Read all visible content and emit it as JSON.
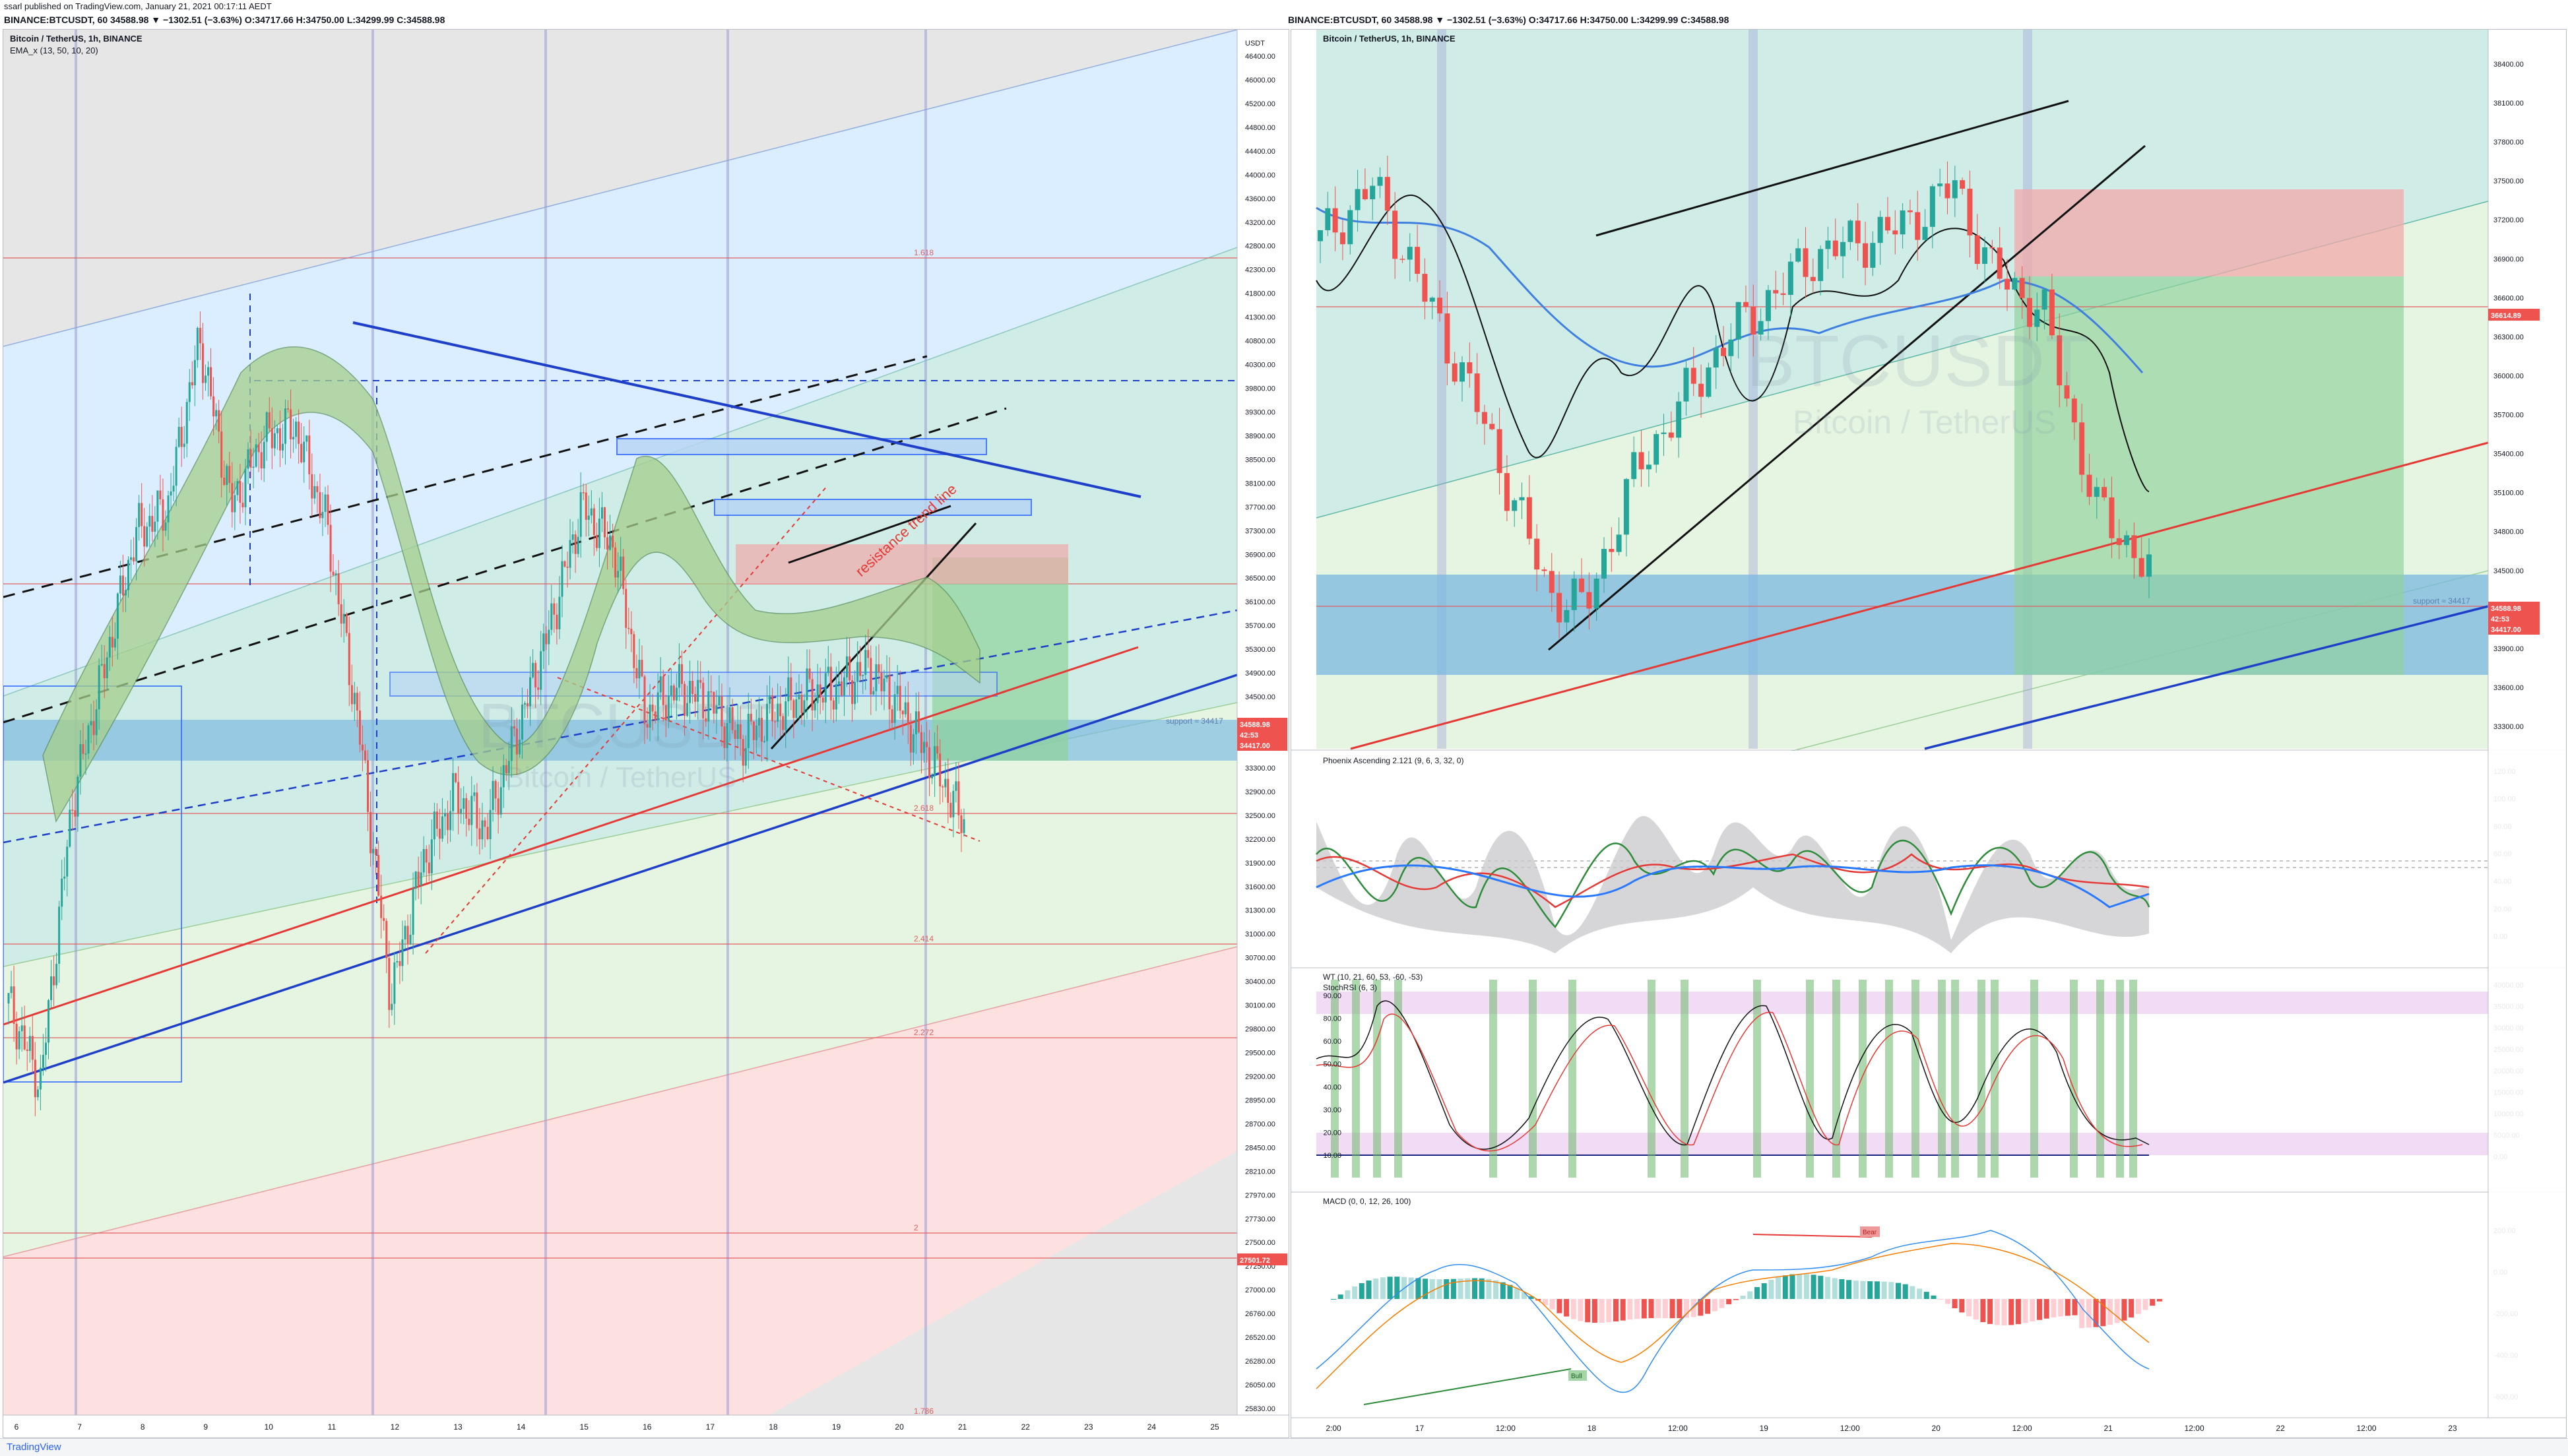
{
  "header": {
    "published": "ssarl published on TradingView.com, January 21, 2021 00:17:11 AEDT",
    "left_symbol_line": "BINANCE:BTCUSDT, 60 34588.98 ▼ −1302.51 (−3.63%) O:34717.66 H:34750.00 L:34299.99 C:34588.98",
    "right_symbol_line": "BINANCE:BTCUSDT, 60 34588.98 ▼ −1302.51 (−3.63%) O:34717.66 H:34750.00 L:34299.99 C:34588.98"
  },
  "footer": {
    "logo": "TradingView"
  },
  "colors": {
    "up": "#26a69a",
    "down": "#ef5350",
    "blue": "#1e3fc8",
    "red_line": "#e53935"
  },
  "left_chart": {
    "legend_title": "Bitcoin / TetherUS, 1h, BINANCE",
    "legend_indicator": "EMA_x (13, 50, 10, 20)",
    "watermark_symbol": "BTCUSDT",
    "watermark_name": "Bitcoin / TetherUS",
    "fib_labels": [
      "1.618",
      "2.618",
      "2.414",
      "2.272",
      "2",
      "1.786"
    ],
    "trend_label": "resistance trend line",
    "support_label": "support ≈ 34417",
    "price_tags": [
      {
        "label": "34588.98",
        "color": "#ef5350"
      },
      {
        "label": "42:53",
        "color": "#ef5350"
      },
      {
        "label": "34417.00",
        "color": "#ef5350"
      },
      {
        "label": "27501.72",
        "color": "#ef5350"
      }
    ],
    "y_axis_header": "USDT",
    "y_ticks": [
      "46400.00",
      "46000.00",
      "45200.00",
      "44800.00",
      "44400.00",
      "44000.00",
      "43600.00",
      "43200.00",
      "42800.00",
      "42300.00",
      "41800.00",
      "41300.00",
      "40800.00",
      "40300.00",
      "39800.00",
      "39300.00",
      "38900.00",
      "38500.00",
      "38100.00",
      "37700.00",
      "37300.00",
      "36900.00",
      "36500.00",
      "36100.00",
      "35700.00",
      "35300.00",
      "34900.00",
      "34500.00",
      "34100.00",
      "33700.00",
      "33300.00",
      "32900.00",
      "32500.00",
      "32200.00",
      "31900.00",
      "31600.00",
      "31300.00",
      "31000.00",
      "30700.00",
      "30400.00",
      "30100.00",
      "29800.00",
      "29500.00",
      "29200.00",
      "28950.00",
      "28700.00",
      "28450.00",
      "28210.00",
      "27970.00",
      "27730.00",
      "27500.00",
      "27250.00",
      "27000.00",
      "26760.00",
      "26520.00",
      "26280.00",
      "26050.00",
      "25830.00"
    ],
    "x_ticks": [
      "6",
      "7",
      "8",
      "9",
      "10",
      "11",
      "12",
      "13",
      "14",
      "15",
      "16",
      "17",
      "18",
      "19",
      "20",
      "21",
      "22",
      "23",
      "24",
      "25"
    ]
  },
  "right_chart": {
    "legend_title": "Bitcoin / TetherUS, 1h, BINANCE",
    "watermark_symbol": "BTCUSDT",
    "watermark_name": "Bitcoin / TetherUS",
    "support_label": "support ≈ 34417",
    "price_tags": [
      {
        "label": "36614.89",
        "color": "#ef5350"
      },
      {
        "label": "34588.98",
        "color": "#ef5350"
      },
      {
        "label": "42:53",
        "color": "#ef5350"
      },
      {
        "label": "34417.00",
        "color": "#ef5350"
      }
    ],
    "y_ticks": [
      "38400.00",
      "38100.00",
      "37800.00",
      "37500.00",
      "37200.00",
      "36900.00",
      "36600.00",
      "36300.00",
      "36000.00",
      "35700.00",
      "35400.00",
      "35100.00",
      "34800.00",
      "34500.00",
      "34200.00",
      "33900.00",
      "33600.00",
      "33300.00"
    ],
    "x_ticks": [
      "2:00",
      "17",
      "12:00",
      "18",
      "12:00",
      "19",
      "12:00",
      "20",
      "12:00",
      "21",
      "12:00",
      "22",
      "12:00",
      "23"
    ]
  },
  "phoenix": {
    "title": "Phoenix Ascending 2.121 (9, 6, 3, 32, 0)",
    "y_ticks": [
      "120.00",
      "100.00",
      "80.00",
      "60.00",
      "40.00",
      "20.00",
      "0.00"
    ]
  },
  "wt": {
    "title": "WT (10, 21, 60, 53, -60, -53)",
    "title2": "StochRSI (6, 3)",
    "left_ticks": [
      "90.00",
      "80.00",
      "60.00",
      "50.00",
      "40.00",
      "30.00",
      "20.00",
      "10.00"
    ],
    "right_ticks": [
      "40000.00",
      "35000.00",
      "30000.00",
      "25000.00",
      "20000.00",
      "15000.00",
      "10000.00",
      "5000.00",
      "0.00"
    ]
  },
  "macd": {
    "title": "MACD (0, 0, 12, 26, 100)",
    "bear_label": "Bear",
    "bull_label": "Bull",
    "y_ticks": [
      "200.00",
      "0.00",
      "-200.00",
      "-400.00",
      "-600.00"
    ]
  },
  "chart_data": [
    {
      "type": "candlestick",
      "title": "Bitcoin / TetherUS, 1h, BINANCE",
      "ylim": [
        25830,
        46400
      ],
      "x_range_days": [
        "6",
        "25"
      ],
      "close_path": [
        [
          6,
          31900
        ],
        [
          6.5,
          30700
        ],
        [
          7,
          34900
        ],
        [
          7.5,
          36900
        ],
        [
          8,
          38900
        ],
        [
          8.5,
          39300
        ],
        [
          9,
          41800
        ],
        [
          9.5,
          39300
        ],
        [
          10,
          40300
        ],
        [
          10.5,
          40500
        ],
        [
          11,
          39000
        ],
        [
          11.5,
          36000
        ],
        [
          12,
          32000
        ],
        [
          12.5,
          34000
        ],
        [
          13,
          35000
        ],
        [
          13.5,
          34500
        ],
        [
          14,
          36000
        ],
        [
          14.5,
          37500
        ],
        [
          15,
          39300
        ],
        [
          15.5,
          38700
        ],
        [
          16,
          36200
        ],
        [
          16.5,
          36600
        ],
        [
          17,
          36400
        ],
        [
          17.5,
          35800
        ],
        [
          18,
          36200
        ],
        [
          18.5,
          36500
        ],
        [
          19,
          36600
        ],
        [
          19.5,
          36900
        ],
        [
          20,
          36300
        ],
        [
          20.5,
          35500
        ],
        [
          21,
          34589
        ]
      ]
    },
    {
      "type": "candlestick",
      "title": "Bitcoin / TetherUS, 1h, BINANCE (zoom)",
      "ylim": [
        33300,
        38400
      ],
      "close_path": [
        [
          16.2,
          36900
        ],
        [
          16.5,
          37300
        ],
        [
          16.8,
          36500
        ],
        [
          17.1,
          35700
        ],
        [
          17.5,
          34400
        ],
        [
          17.7,
          34300
        ],
        [
          18,
          35300
        ],
        [
          18.5,
          36200
        ],
        [
          19,
          36800
        ],
        [
          19.5,
          37000
        ],
        [
          19.8,
          37300
        ],
        [
          20,
          36700
        ],
        [
          20.3,
          36400
        ],
        [
          20.6,
          35000
        ],
        [
          20.9,
          34589
        ]
      ]
    }
  ]
}
